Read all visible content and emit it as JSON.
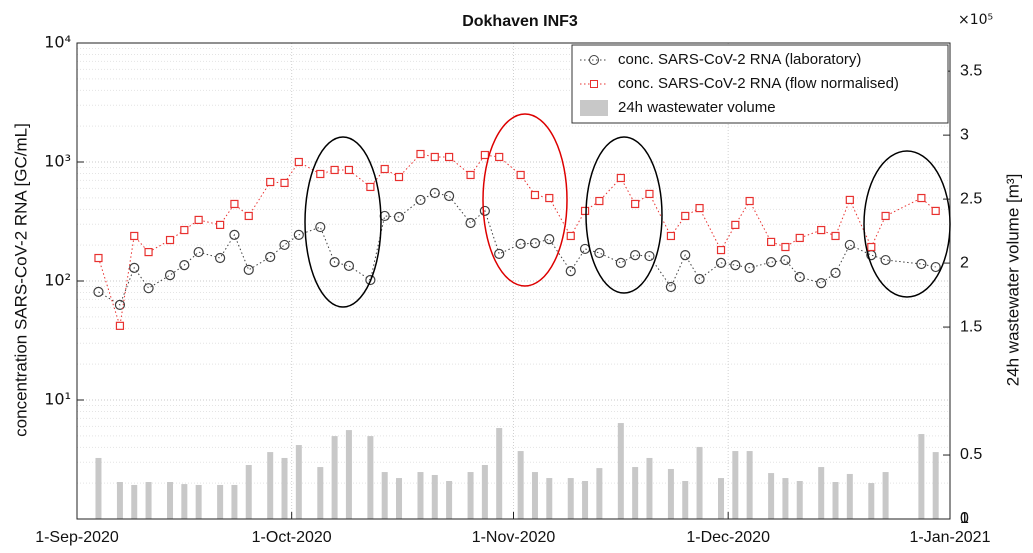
{
  "chart_data": {
    "type": "line",
    "title": "Dokhaven INF3",
    "y_label": "concentration SARS-CoV-2 RNA [GC/mL]",
    "y2_label": "24h wastewater volume [m³]",
    "y2_exponent_label": "×10⁵",
    "log_y": true,
    "grid": true,
    "legend": "top-right",
    "x": [
      "2020-09-04",
      "2020-09-07",
      "2020-09-09",
      "2020-09-11",
      "2020-09-14",
      "2020-09-16",
      "2020-09-18",
      "2020-09-21",
      "2020-09-23",
      "2020-09-25",
      "2020-09-28",
      "2020-09-30",
      "2020-10-02",
      "2020-10-05",
      "2020-10-07",
      "2020-10-09",
      "2020-10-12",
      "2020-10-14",
      "2020-10-16",
      "2020-10-19",
      "2020-10-21",
      "2020-10-23",
      "2020-10-26",
      "2020-10-28",
      "2020-10-30",
      "2020-11-02",
      "2020-11-04",
      "2020-11-06",
      "2020-11-09",
      "2020-11-11",
      "2020-11-13",
      "2020-11-16",
      "2020-11-18",
      "2020-11-20",
      "2020-11-23",
      "2020-11-25",
      "2020-11-27",
      "2020-11-30",
      "2020-12-02",
      "2020-12-04",
      "2020-12-07",
      "2020-12-09",
      "2020-12-11",
      "2020-12-14",
      "2020-12-16",
      "2020-12-18",
      "2020-12-21",
      "2020-12-23",
      "2020-12-28",
      "2020-12-30"
    ],
    "xlim": [
      "2020-09-01",
      "2021-01-01"
    ],
    "xticks": [
      {
        "value": "2020-09-01",
        "label": "1-Sep-2020"
      },
      {
        "value": "2020-10-01",
        "label": "1-Oct-2020"
      },
      {
        "value": "2020-11-01",
        "label": "1-Nov-2020"
      },
      {
        "value": "2020-12-01",
        "label": "1-Dec-2020"
      },
      {
        "value": "2021-01-01",
        "label": "1-Jan-2021"
      }
    ],
    "ylim": [
      1,
      10000
    ],
    "yticks": [
      {
        "value": 10,
        "label": "10¹"
      },
      {
        "value": 100,
        "label": "10²"
      },
      {
        "value": 1000,
        "label": "10³"
      },
      {
        "value": 10000,
        "label": "10⁴"
      }
    ],
    "y2lim": [
      0,
      372000
    ],
    "y2ticks": [
      0,
      {
        "value": 50000,
        "label": "0.5"
      },
      1,
      {
        "value": 150000,
        "label": "1.5"
      },
      {
        "value": 200000,
        "label": "2"
      },
      {
        "value": 250000,
        "label": "2.5"
      },
      {
        "value": 300000,
        "label": "3"
      },
      {
        "value": 350000,
        "label": "3.5"
      }
    ],
    "series": [
      {
        "name": "conc. SARS-CoV-2 RNA (laboratory)",
        "type": "line",
        "marker": "circle",
        "color": "#404040",
        "values": [
          81,
          63,
          129,
          87,
          112,
          136,
          175,
          156,
          244,
          124,
          159,
          201,
          244,
          284,
          144,
          134,
          102,
          352,
          345,
          480,
          549,
          518,
          307,
          388,
          169,
          205,
          208,
          225,
          121,
          186,
          172,
          142,
          165,
          162,
          89,
          165,
          104,
          142,
          136,
          129,
          144,
          150,
          108,
          96,
          117,
          201,
          165,
          150,
          139,
          131
        ]
      },
      {
        "name": "conc. SARS-CoV-2 RNA (flow normalised)",
        "type": "line",
        "marker": "square",
        "color": "#e8312f",
        "values": [
          156,
          42,
          239,
          175,
          221,
          268,
          326,
          296,
          444,
          352,
          679,
          667,
          1000,
          793,
          857,
          857,
          617,
          873,
          748,
          1167,
          1102,
          1102,
          778,
          1145,
          1102,
          778,
          528,
          498,
          239,
          388,
          470,
          734,
          444,
          539,
          239,
          352,
          410,
          182,
          296,
          470,
          213,
          193,
          230,
          268,
          239,
          480,
          193,
          352,
          498,
          388
        ]
      },
      {
        "name": "24h wastewater volume",
        "type": "bar",
        "axis": "y2",
        "color": "#c8c8c8",
        "values": [
          47700,
          28900,
          26600,
          28900,
          28900,
          27300,
          26600,
          26600,
          26600,
          42200,
          52300,
          47700,
          57800,
          40600,
          64800,
          69500,
          64800,
          36700,
          32000,
          36700,
          34400,
          29700,
          36700,
          42200,
          71100,
          53100,
          36700,
          32000,
          32000,
          29700,
          39800,
          75000,
          40600,
          47700,
          39100,
          29700,
          56300,
          32000,
          53100,
          53100,
          35900,
          32000,
          29700,
          40600,
          28900,
          35200,
          28100,
          36700,
          66400,
          52300
        ]
      }
    ]
  }
}
